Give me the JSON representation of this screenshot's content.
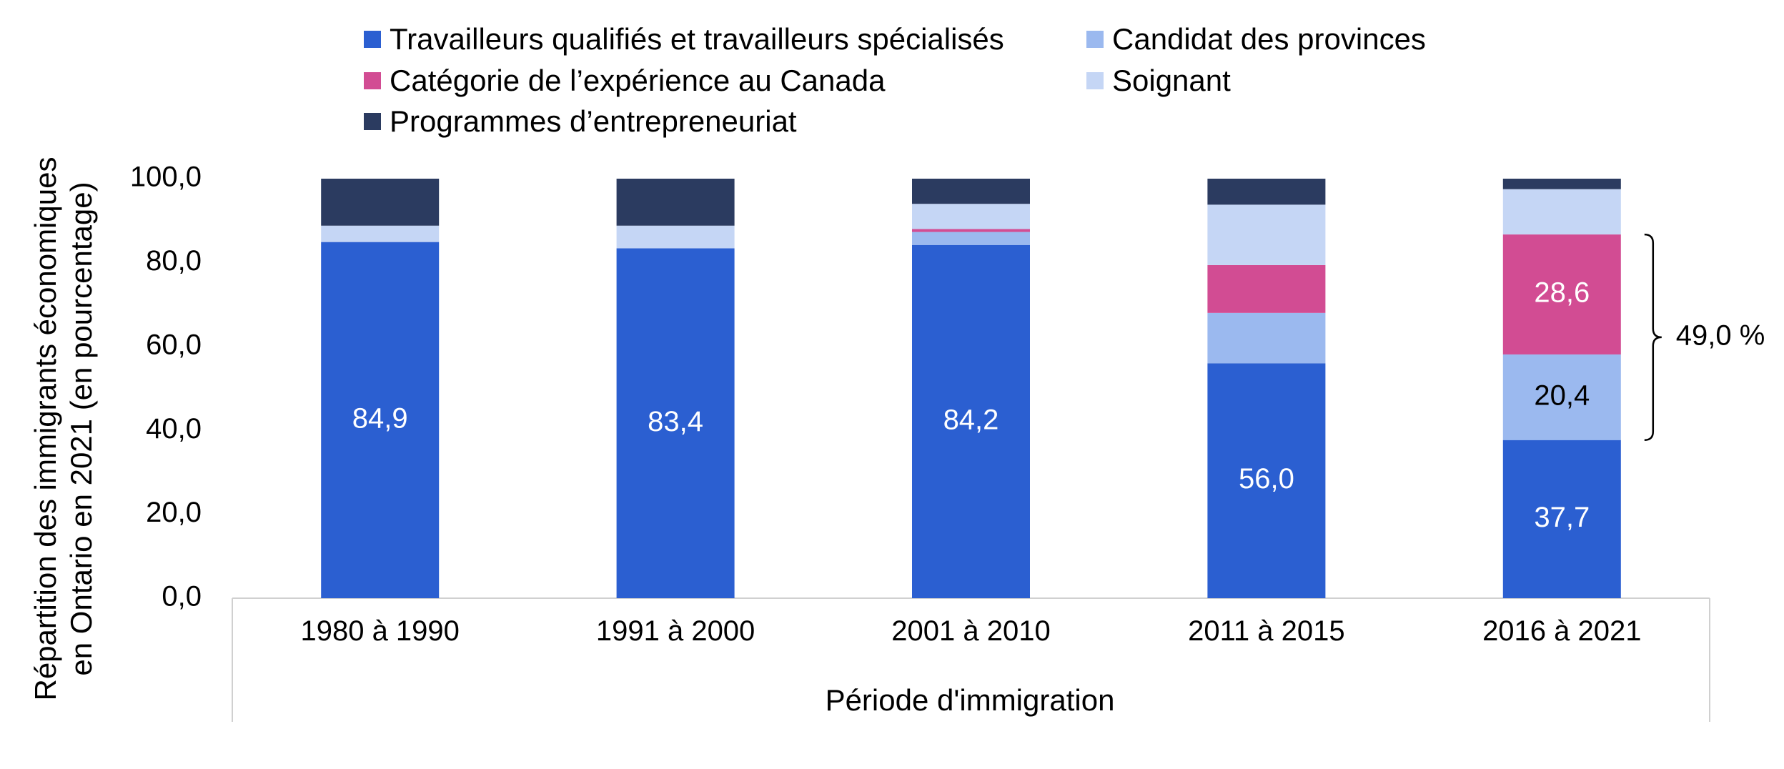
{
  "chart_data": {
    "type": "bar",
    "stacked": true,
    "categories": [
      "1980 à 1990",
      "1991 à 2000",
      "2001 à 2010",
      "2011 à 2015",
      "2016 à 2021"
    ],
    "series": [
      {
        "name": "Travailleurs qualifiés et travailleurs spécialisés",
        "color": "#2b5fd1",
        "values": [
          84.9,
          83.4,
          84.2,
          56.0,
          37.7
        ]
      },
      {
        "name": "Candidat des provinces",
        "color": "#9bb9ef",
        "values": [
          0.0,
          0.0,
          3.1,
          12.0,
          20.4
        ]
      },
      {
        "name": "Catégorie de l’expérience au Canada",
        "color": "#d24c93",
        "values": [
          0.0,
          0.0,
          0.7,
          11.4,
          28.6
        ]
      },
      {
        "name": "Soignant",
        "color": "#c5d6f5",
        "values": [
          3.9,
          5.4,
          6.0,
          14.4,
          10.8
        ]
      },
      {
        "name": "Programmes d’entrepreneuriat",
        "color": "#2b3b60",
        "values": [
          11.2,
          11.2,
          6.0,
          6.2,
          2.5
        ]
      }
    ],
    "data_labels": [
      {
        "series": 0,
        "category": 0,
        "text": "84,9",
        "color": "#ffffff"
      },
      {
        "series": 0,
        "category": 1,
        "text": "83,4",
        "color": "#ffffff"
      },
      {
        "series": 0,
        "category": 2,
        "text": "84,2",
        "color": "#ffffff"
      },
      {
        "series": 0,
        "category": 3,
        "text": "56,0",
        "color": "#ffffff"
      },
      {
        "series": 0,
        "category": 4,
        "text": "37,7",
        "color": "#ffffff"
      },
      {
        "series": 1,
        "category": 4,
        "text": "20,4",
        "color": "#000000"
      },
      {
        "series": 2,
        "category": 4,
        "text": "28,6",
        "color": "#ffffff"
      }
    ],
    "annotation": {
      "text": "49,0 %",
      "category": 4,
      "from": 37.7,
      "to": 86.7
    },
    "yticks": [
      "0,0",
      "20,0",
      "40,0",
      "60,0",
      "80,0",
      "100,0"
    ],
    "ylim": [
      0,
      100
    ],
    "ylabel_lines": [
      "Répartition des immigrants économiques",
      "en Ontario en 2021 (en pourcentage)"
    ],
    "xlabel": "Période d'immigration",
    "legend_position": "top"
  }
}
